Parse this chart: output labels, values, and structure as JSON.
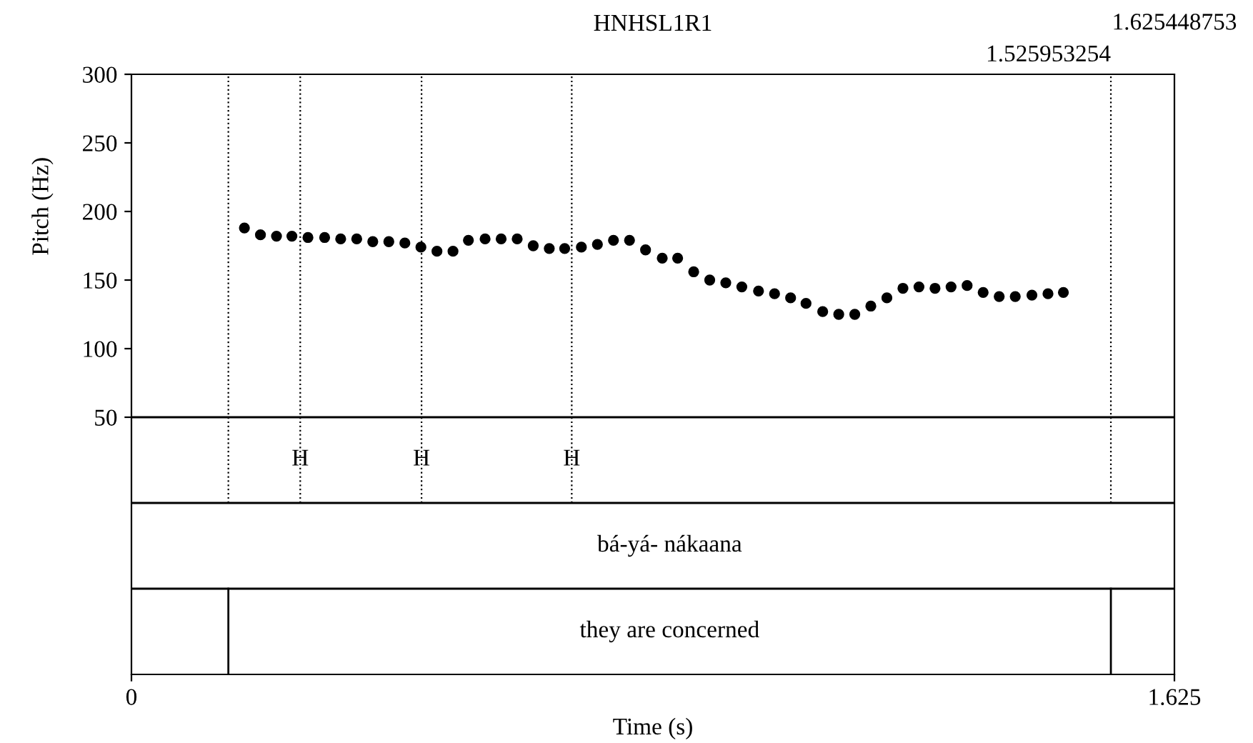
{
  "chart_data": {
    "type": "scatter",
    "title": "HNHSL1R1",
    "xlabel": "Time (s)",
    "ylabel": "Pitch (Hz)",
    "x": [
      0.176,
      0.201,
      0.226,
      0.25,
      0.275,
      0.301,
      0.326,
      0.351,
      0.376,
      0.401,
      0.426,
      0.451,
      0.476,
      0.501,
      0.525,
      0.551,
      0.576,
      0.601,
      0.626,
      0.651,
      0.675,
      0.701,
      0.726,
      0.751,
      0.776,
      0.801,
      0.827,
      0.851,
      0.876,
      0.901,
      0.926,
      0.951,
      0.977,
      1.002,
      1.027,
      1.051,
      1.077,
      1.102,
      1.127,
      1.152,
      1.177,
      1.202,
      1.227,
      1.252,
      1.277,
      1.302,
      1.327,
      1.352,
      1.377,
      1.403,
      1.428,
      1.452
    ],
    "values": [
      188,
      183,
      182,
      182,
      181,
      181,
      180,
      180,
      178,
      178,
      177,
      174,
      171,
      171,
      179,
      180,
      180,
      180,
      175,
      173,
      173,
      174,
      176,
      179,
      179,
      172,
      166,
      166,
      156,
      150,
      148,
      145,
      142,
      140,
      137,
      133,
      127,
      125,
      125,
      131,
      137,
      144,
      145,
      144,
      145,
      146,
      141,
      138,
      138,
      139,
      140,
      141
    ],
    "color": "#000000",
    "marker": "circle",
    "xlim": [
      0,
      1.625
    ],
    "xticks": [
      0,
      1.625
    ],
    "ylim": [
      -137.5,
      300
    ],
    "yticks": [
      50,
      100,
      150,
      200,
      250,
      300
    ],
    "grid": false,
    "ref_lines": [
      {
        "axis": "y",
        "value": 50,
        "line_style": "solid"
      },
      {
        "axis": "y",
        "value": -12.5,
        "line_style": "solid"
      },
      {
        "axis": "y",
        "value": -75,
        "line_style": "solid"
      },
      {
        "axis": "x",
        "value": 0.151,
        "line_style": "dotted"
      },
      {
        "axis": "x",
        "value": 0.263,
        "line_style": "dotted"
      },
      {
        "axis": "x",
        "value": 0.452,
        "line_style": "dotted"
      },
      {
        "axis": "x",
        "value": 0.686,
        "line_style": "dotted"
      },
      {
        "axis": "x",
        "value": 1.526,
        "line_style": "dotted"
      },
      {
        "axis": "x",
        "value": 0.151,
        "line_style": "solid"
      },
      {
        "axis": "x",
        "value": 1.526,
        "line_style": "solid"
      }
    ],
    "annotations": [
      {
        "text": "H",
        "x": 0.263,
        "y": 19
      },
      {
        "text": "H",
        "x": 0.452,
        "y": 19
      },
      {
        "text": "H",
        "x": 0.686,
        "y": 19
      },
      "bá-yá- nákaana",
      "they are concerned",
      {
        "text": "1.525953254",
        "x": 1.526,
        "y": 300
      },
      "1.625448753"
    ]
  }
}
